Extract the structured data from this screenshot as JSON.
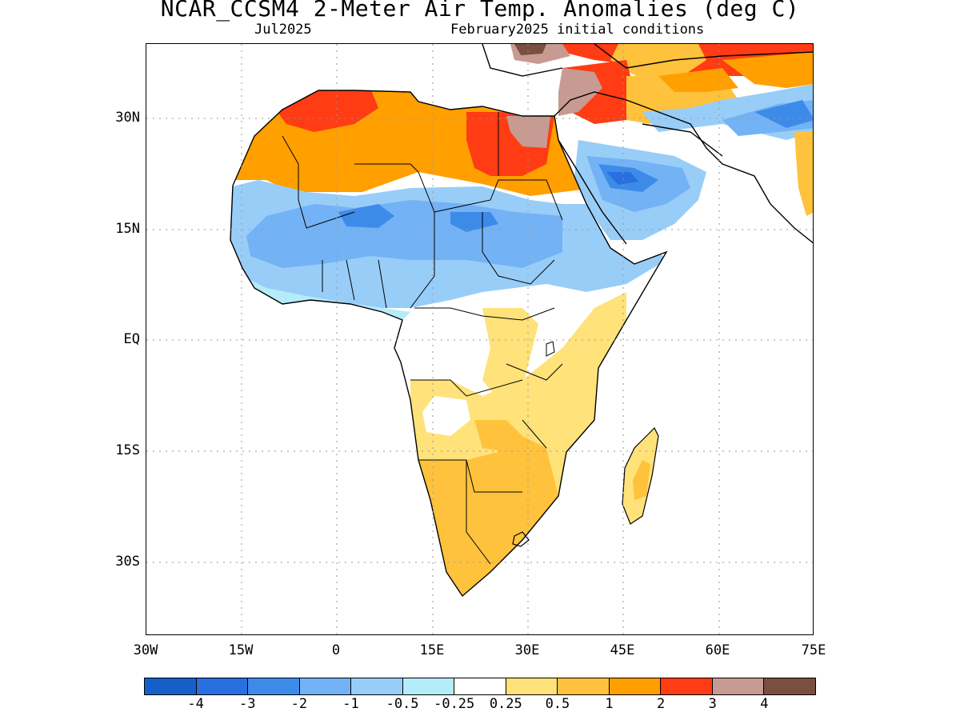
{
  "title": "NCAR_CCSM4 2-Meter Air Temp. Anomalies (deg C)",
  "subtitle_left": "Jul2025",
  "subtitle_right": "February2025 initial conditions",
  "lat_ticks": [
    "30N",
    "15N",
    "EQ",
    "15S",
    "30S"
  ],
  "lon_ticks": [
    "30W",
    "15W",
    "0",
    "15E",
    "30E",
    "45E",
    "60E",
    "75E"
  ],
  "colorbar": {
    "colors": [
      "#1560c8",
      "#2a6fe0",
      "#3d8be9",
      "#73b2f5",
      "#98cdf8",
      "#b4ecfa",
      "#ffffff",
      "#ffe27a",
      "#ffc23c",
      "#ff9f00",
      "#ff3c14",
      "#c79b91",
      "#7a4e41"
    ],
    "labels": [
      "-4",
      "-3",
      "-2",
      "-1",
      "-0.5",
      "-0.25",
      "0.25",
      "0.5",
      "1",
      "2",
      "3",
      "4"
    ]
  }
}
